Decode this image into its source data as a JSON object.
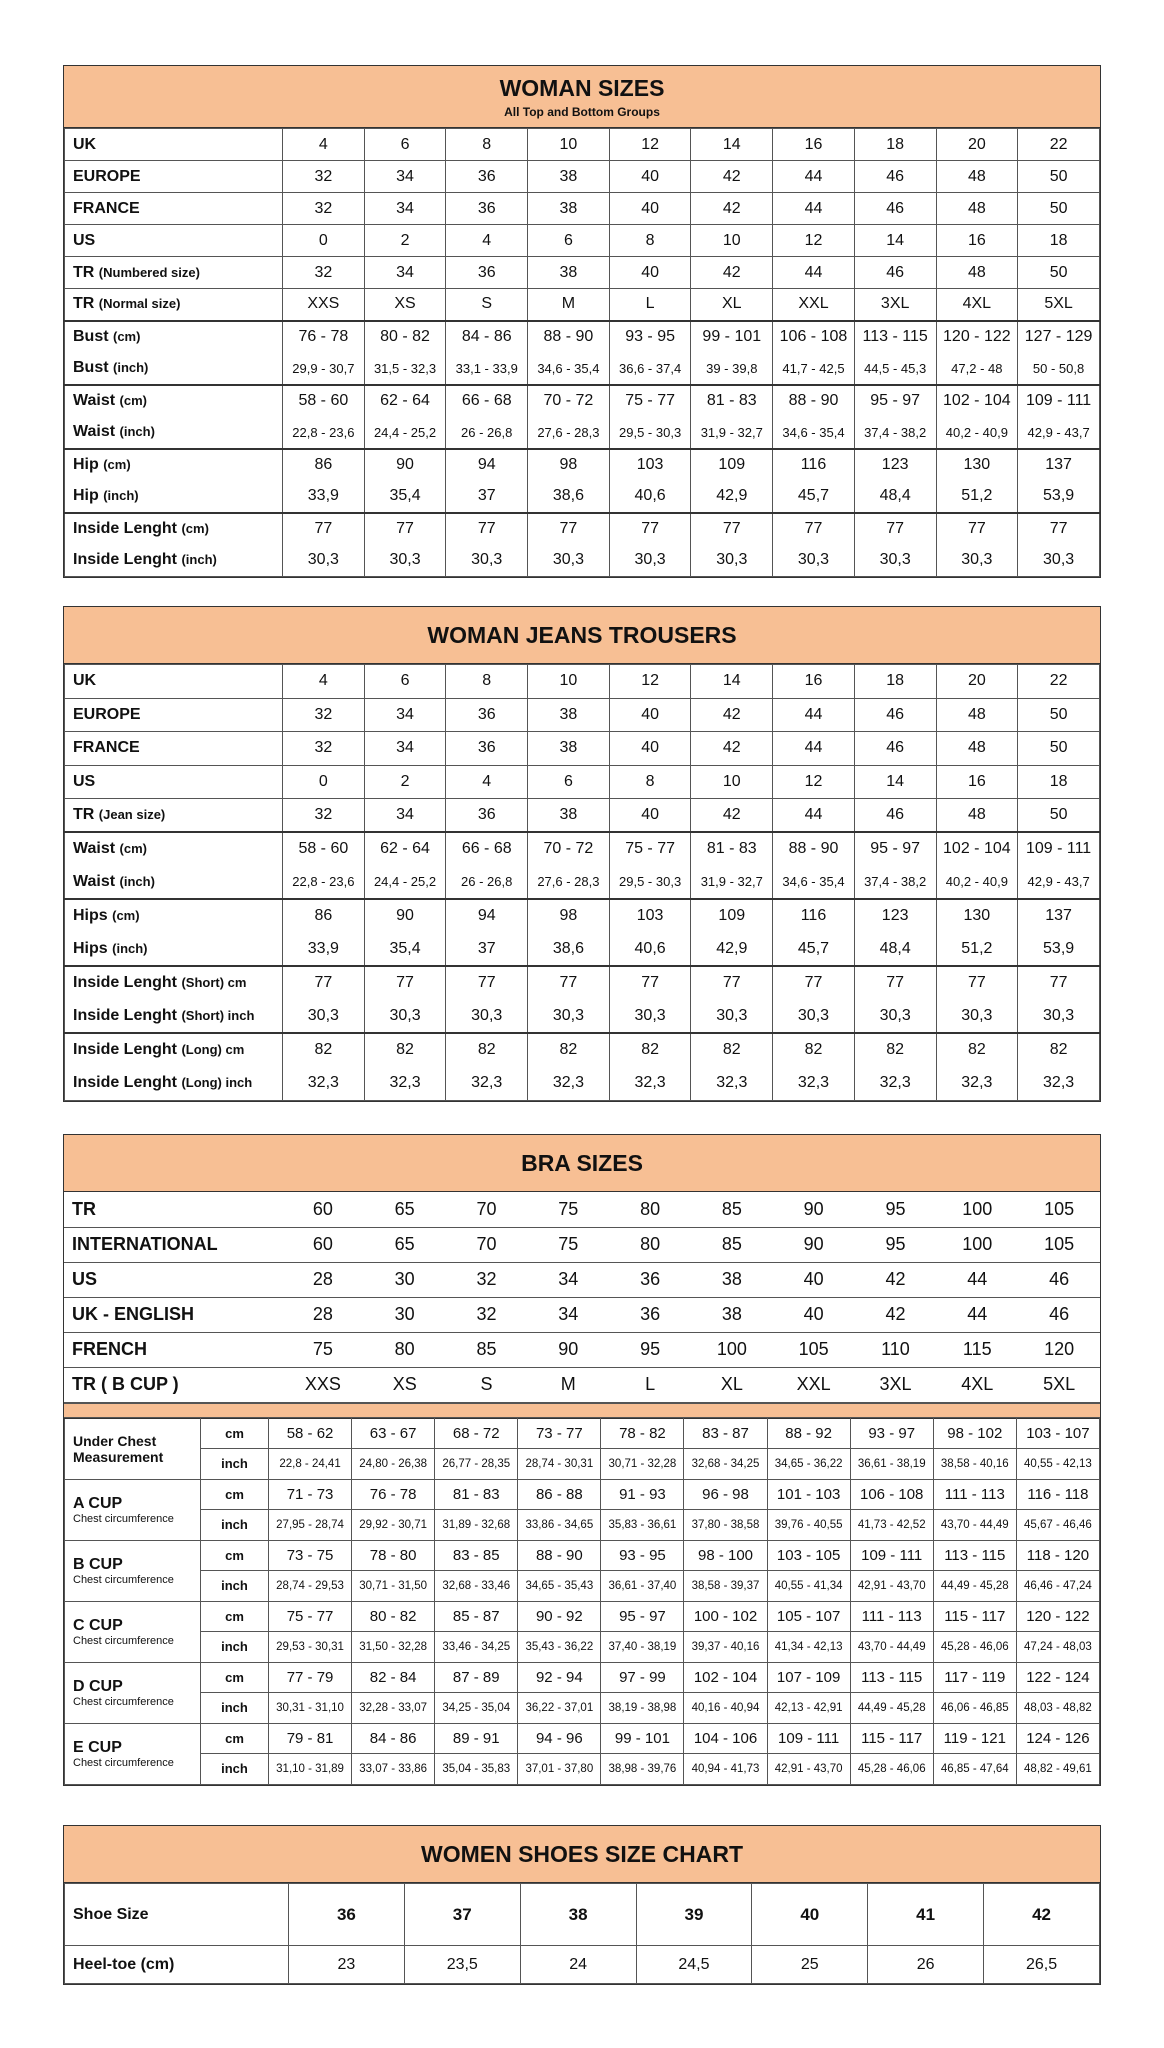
{
  "colors": {
    "header": "#f7bf94",
    "border": "#333333"
  },
  "woman_sizes": {
    "title": "WOMAN SIZES",
    "subtitle": "All Top and Bottom Groups",
    "rows": [
      {
        "main": "UK",
        "sub": "",
        "values": [
          "4",
          "6",
          "8",
          "10",
          "12",
          "14",
          "16",
          "18",
          "20",
          "22"
        ]
      },
      {
        "main": "EUROPE",
        "sub": "",
        "values": [
          "32",
          "34",
          "36",
          "38",
          "40",
          "42",
          "44",
          "46",
          "48",
          "50"
        ]
      },
      {
        "main": "FRANCE",
        "sub": "",
        "values": [
          "32",
          "34",
          "36",
          "38",
          "40",
          "42",
          "44",
          "46",
          "48",
          "50"
        ]
      },
      {
        "main": "US",
        "sub": "",
        "values": [
          "0",
          "2",
          "4",
          "6",
          "8",
          "10",
          "12",
          "14",
          "16",
          "18"
        ]
      },
      {
        "main": "TR ",
        "sub": "(Numbered size)",
        "values": [
          "32",
          "34",
          "36",
          "38",
          "40",
          "42",
          "44",
          "46",
          "48",
          "50"
        ]
      },
      {
        "main": "TR ",
        "sub": "(Normal size)",
        "values": [
          "XXS",
          "XS",
          "S",
          "M",
          "L",
          "XL",
          "XXL",
          "3XL",
          "4XL",
          "5XL"
        ]
      },
      {
        "main": "Bust ",
        "sub": "(cm)",
        "values": [
          "76 - 78",
          "80 - 82",
          "84 - 86",
          "88 - 90",
          "93 - 95",
          "99 - 101",
          "106 - 108",
          "113 - 115",
          "120 - 122",
          "127 - 129"
        ]
      },
      {
        "main": "Bust ",
        "sub": "(inch)",
        "values": [
          "29,9 - 30,7",
          "31,5 - 32,3",
          "33,1 - 33,9",
          "34,6 - 35,4",
          "36,6 - 37,4",
          "39 - 39,8",
          "41,7 - 42,5",
          "44,5 - 45,3",
          "47,2 - 48",
          "50 - 50,8"
        ]
      },
      {
        "main": "Waist ",
        "sub": "(cm)",
        "values": [
          "58 - 60",
          "62 - 64",
          "66 - 68",
          "70 - 72",
          "75 - 77",
          "81 - 83",
          "88 - 90",
          "95 - 97",
          "102 - 104",
          "109 - 111"
        ]
      },
      {
        "main": "Waist ",
        "sub": "(inch)",
        "values": [
          "22,8 - 23,6",
          "24,4 - 25,2",
          "26 - 26,8",
          "27,6 - 28,3",
          "29,5 - 30,3",
          "31,9 - 32,7",
          "34,6 - 35,4",
          "37,4 - 38,2",
          "40,2 - 40,9",
          "42,9 - 43,7"
        ]
      },
      {
        "main": "Hip ",
        "sub": "(cm)",
        "values": [
          "86",
          "90",
          "94",
          "98",
          "103",
          "109",
          "116",
          "123",
          "130",
          "137"
        ]
      },
      {
        "main": "Hip ",
        "sub": "(inch)",
        "values": [
          "33,9",
          "35,4",
          "37",
          "38,6",
          "40,6",
          "42,9",
          "45,7",
          "48,4",
          "51,2",
          "53,9"
        ]
      },
      {
        "main": "Inside Lenght ",
        "sub": "(cm)",
        "values": [
          "77",
          "77",
          "77",
          "77",
          "77",
          "77",
          "77",
          "77",
          "77",
          "77"
        ]
      },
      {
        "main": "Inside Lenght ",
        "sub": "(inch)",
        "values": [
          "30,3",
          "30,3",
          "30,3",
          "30,3",
          "30,3",
          "30,3",
          "30,3",
          "30,3",
          "30,3",
          "30,3"
        ]
      }
    ]
  },
  "jeans": {
    "title": "WOMAN JEANS TROUSERS",
    "rows": [
      {
        "main": "UK",
        "sub": "",
        "values": [
          "4",
          "6",
          "8",
          "10",
          "12",
          "14",
          "16",
          "18",
          "20",
          "22"
        ]
      },
      {
        "main": "EUROPE",
        "sub": "",
        "values": [
          "32",
          "34",
          "36",
          "38",
          "40",
          "42",
          "44",
          "46",
          "48",
          "50"
        ]
      },
      {
        "main": "FRANCE",
        "sub": "",
        "values": [
          "32",
          "34",
          "36",
          "38",
          "40",
          "42",
          "44",
          "46",
          "48",
          "50"
        ]
      },
      {
        "main": "US",
        "sub": "",
        "values": [
          "0",
          "2",
          "4",
          "6",
          "8",
          "10",
          "12",
          "14",
          "16",
          "18"
        ]
      },
      {
        "main": "TR ",
        "sub": "(Jean size)",
        "values": [
          "32",
          "34",
          "36",
          "38",
          "40",
          "42",
          "44",
          "46",
          "48",
          "50"
        ]
      },
      {
        "main": "Waist ",
        "sub": "(cm)",
        "values": [
          "58 - 60",
          "62 - 64",
          "66 - 68",
          "70 - 72",
          "75 - 77",
          "81 - 83",
          "88 - 90",
          "95 - 97",
          "102 - 104",
          "109 - 111"
        ]
      },
      {
        "main": "Waist ",
        "sub": "(inch)",
        "values": [
          "22,8 - 23,6",
          "24,4 - 25,2",
          "26 - 26,8",
          "27,6 - 28,3",
          "29,5 - 30,3",
          "31,9 - 32,7",
          "34,6 - 35,4",
          "37,4 - 38,2",
          "40,2 - 40,9",
          "42,9 - 43,7"
        ]
      },
      {
        "main": "Hips ",
        "sub": "(cm)",
        "values": [
          "86",
          "90",
          "94",
          "98",
          "103",
          "109",
          "116",
          "123",
          "130",
          "137"
        ]
      },
      {
        "main": "Hips ",
        "sub": "(inch)",
        "values": [
          "33,9",
          "35,4",
          "37",
          "38,6",
          "40,6",
          "42,9",
          "45,7",
          "48,4",
          "51,2",
          "53,9"
        ]
      },
      {
        "main": "Inside Lenght ",
        "sub": "(Short) cm",
        "values": [
          "77",
          "77",
          "77",
          "77",
          "77",
          "77",
          "77",
          "77",
          "77",
          "77"
        ]
      },
      {
        "main": "Inside Lenght ",
        "sub": "(Short) inch",
        "values": [
          "30,3",
          "30,3",
          "30,3",
          "30,3",
          "30,3",
          "30,3",
          "30,3",
          "30,3",
          "30,3",
          "30,3"
        ]
      },
      {
        "main": "Inside Lenght ",
        "sub": "(Long) cm",
        "values": [
          "82",
          "82",
          "82",
          "82",
          "82",
          "82",
          "82",
          "82",
          "82",
          "82"
        ]
      },
      {
        "main": "Inside Lenght ",
        "sub": "(Long) inch",
        "values": [
          "32,3",
          "32,3",
          "32,3",
          "32,3",
          "32,3",
          "32,3",
          "32,3",
          "32,3",
          "32,3",
          "32,3"
        ]
      }
    ]
  },
  "bra": {
    "title": "BRA SIZES",
    "size_rows": [
      {
        "main": "TR",
        "sub": "",
        "values": [
          "60",
          "65",
          "70",
          "75",
          "80",
          "85",
          "90",
          "95",
          "100",
          "105"
        ]
      },
      {
        "main": "INTERNATIONAL",
        "sub": "",
        "values": [
          "60",
          "65",
          "70",
          "75",
          "80",
          "85",
          "90",
          "95",
          "100",
          "105"
        ]
      },
      {
        "main": "US",
        "sub": "",
        "values": [
          "28",
          "30",
          "32",
          "34",
          "36",
          "38",
          "40",
          "42",
          "44",
          "46"
        ]
      },
      {
        "main": "UK - ENGLISH",
        "sub": "",
        "values": [
          "28",
          "30",
          "32",
          "34",
          "36",
          "38",
          "40",
          "42",
          "44",
          "46"
        ]
      },
      {
        "main": "FRENCH",
        "sub": "",
        "values": [
          "75",
          "80",
          "85",
          "90",
          "95",
          "100",
          "105",
          "110",
          "115",
          "120"
        ]
      },
      {
        "main": "TR ( B CUP )",
        "sub": "",
        "values": [
          "XXS",
          "XS",
          "S",
          "M",
          "L",
          "XL",
          "XXL",
          "3XL",
          "4XL",
          "5XL"
        ]
      }
    ],
    "cups": [
      {
        "name": "Under Chest Measurement",
        "note": "",
        "cm": [
          "58 - 62",
          "63 - 67",
          "68 - 72",
          "73 - 77",
          "78 - 82",
          "83 - 87",
          "88 - 92",
          "93 - 97",
          "98 - 102",
          "103 - 107"
        ],
        "inch": [
          "22,8 - 24,41",
          "24,80 - 26,38",
          "26,77 - 28,35",
          "28,74 - 30,31",
          "30,71 - 32,28",
          "32,68 - 34,25",
          "34,65 - 36,22",
          "36,61 - 38,19",
          "38,58 - 40,16",
          "40,55 - 42,13"
        ]
      },
      {
        "name": "A CUP",
        "note": "Chest circumference",
        "cm": [
          "71 - 73",
          "76 - 78",
          "81 - 83",
          "86 - 88",
          "91 - 93",
          "96 - 98",
          "101 - 103",
          "106 - 108",
          "111 - 113",
          "116 - 118"
        ],
        "inch": [
          "27,95 - 28,74",
          "29,92 - 30,71",
          "31,89 - 32,68",
          "33,86 - 34,65",
          "35,83 - 36,61",
          "37,80 - 38,58",
          "39,76 - 40,55",
          "41,73 - 42,52",
          "43,70 - 44,49",
          "45,67 - 46,46"
        ]
      },
      {
        "name": "B CUP",
        "note": "Chest circumference",
        "cm": [
          "73 - 75",
          "78 - 80",
          "83 - 85",
          "88 - 90",
          "93 - 95",
          "98 - 100",
          "103 - 105",
          "109 - 111",
          "113 - 115",
          "118 - 120"
        ],
        "inch": [
          "28,74 - 29,53",
          "30,71 - 31,50",
          "32,68 - 33,46",
          "34,65 - 35,43",
          "36,61 - 37,40",
          "38,58 - 39,37",
          "40,55 - 41,34",
          "42,91 - 43,70",
          "44,49 - 45,28",
          "46,46 - 47,24"
        ]
      },
      {
        "name": "C CUP",
        "note": "Chest circumference",
        "cm": [
          "75 - 77",
          "80 - 82",
          "85 - 87",
          "90 - 92",
          "95 - 97",
          "100 - 102",
          "105 - 107",
          "111 - 113",
          "115 - 117",
          "120 - 122"
        ],
        "inch": [
          "29,53 - 30,31",
          "31,50 - 32,28",
          "33,46 - 34,25",
          "35,43 - 36,22",
          "37,40 - 38,19",
          "39,37 - 40,16",
          "41,34 - 42,13",
          "43,70 - 44,49",
          "45,28 - 46,06",
          "47,24 - 48,03"
        ]
      },
      {
        "name": "D CUP",
        "note": "Chest circumference",
        "cm": [
          "77 - 79",
          "82 - 84",
          "87 - 89",
          "92 - 94",
          "97 - 99",
          "102 - 104",
          "107 - 109",
          "113 - 115",
          "117 - 119",
          "122 - 124"
        ],
        "inch": [
          "30,31 - 31,10",
          "32,28 - 33,07",
          "34,25 - 35,04",
          "36,22 - 37,01",
          "38,19 - 38,98",
          "40,16 - 40,94",
          "42,13 - 42,91",
          "44,49 - 45,28",
          "46,06 - 46,85",
          "48,03 - 48,82"
        ]
      },
      {
        "name": "E CUP",
        "note": "Chest circumference",
        "cm": [
          "79 - 81",
          "84 - 86",
          "89 - 91",
          "94 - 96",
          "99 - 101",
          "104 - 106",
          "109 - 111",
          "115 - 117",
          "119 - 121",
          "124 - 126"
        ],
        "inch": [
          "31,10 - 31,89",
          "33,07 - 33,86",
          "35,04 - 35,83",
          "37,01 - 37,80",
          "38,98 - 39,76",
          "40,94 - 41,73",
          "42,91 - 43,70",
          "45,28 - 46,06",
          "46,85 - 47,64",
          "48,82 - 49,61"
        ]
      }
    ],
    "unit_cm": "cm",
    "unit_inch": "inch"
  },
  "shoes": {
    "title": "WOMEN SHOES SIZE CHART",
    "rows": [
      {
        "main": "Shoe Size",
        "sub": "",
        "values": [
          "36",
          "37",
          "38",
          "39",
          "40",
          "41",
          "42"
        ]
      },
      {
        "main": "Heel-toe (cm)",
        "sub": "",
        "values": [
          "23",
          "23,5",
          "24",
          "24,5",
          "25",
          "26",
          "26,5"
        ]
      }
    ]
  }
}
